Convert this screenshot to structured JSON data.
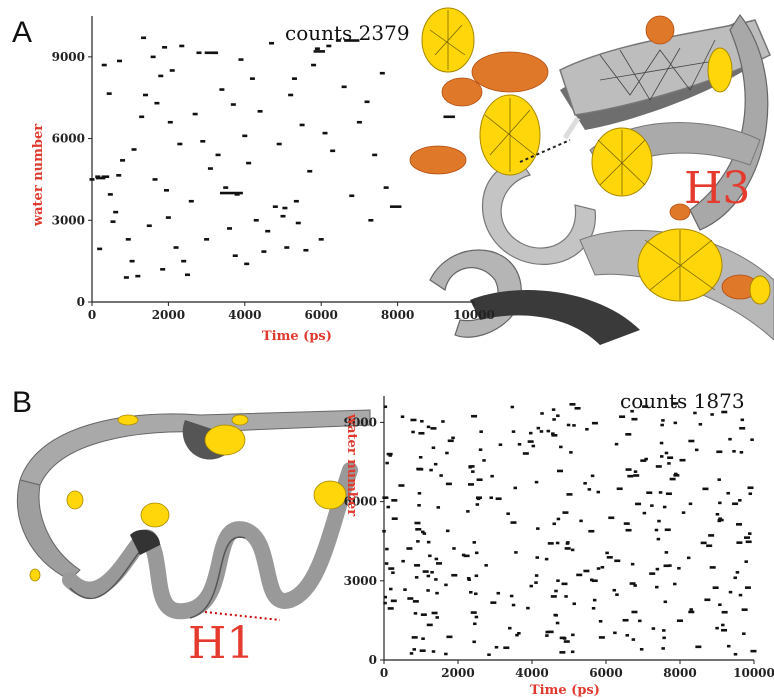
{
  "panels": {
    "a": {
      "letter": "A",
      "helix": "H3"
    },
    "b": {
      "letter": "B",
      "helix": "H1"
    }
  },
  "colors": {
    "axis_label": "#e03a2f",
    "helix_label": "#e53a2e",
    "ribbon": "#9a9a9a",
    "density_yellow": "#ffd200",
    "density_orange": "#e07a20"
  },
  "chart_data": [
    {
      "type": "scatter",
      "panel": "A",
      "annotation": "counts 2379",
      "xlabel": "Time (ps)",
      "ylabel": "water number",
      "xlim": [
        0,
        10000
      ],
      "ylim": [
        0,
        10500
      ],
      "xticks": [
        "0",
        "2000",
        "4000",
        "6000",
        "8000",
        "10000"
      ],
      "yticks": [
        "0",
        "3000",
        "6000",
        "9000"
      ],
      "grid": false,
      "points": [
        [
          0,
          4500
        ],
        [
          150,
          4600
        ],
        [
          200,
          1950
        ],
        [
          320,
          8700
        ],
        [
          450,
          7650
        ],
        [
          480,
          3950
        ],
        [
          550,
          2950
        ],
        [
          620,
          3300
        ],
        [
          700,
          4650
        ],
        [
          720,
          8850
        ],
        [
          800,
          5200
        ],
        [
          900,
          900
        ],
        [
          950,
          2300
        ],
        [
          1050,
          1500
        ],
        [
          1100,
          5600
        ],
        [
          1200,
          950
        ],
        [
          1300,
          6800
        ],
        [
          1350,
          9700
        ],
        [
          1400,
          7600
        ],
        [
          1500,
          2800
        ],
        [
          1600,
          9000
        ],
        [
          1650,
          4500
        ],
        [
          1700,
          7300
        ],
        [
          1800,
          8300
        ],
        [
          1850,
          1200
        ],
        [
          1900,
          9350
        ],
        [
          1950,
          4100
        ],
        [
          2000,
          3100
        ],
        [
          2050,
          6600
        ],
        [
          2100,
          8500
        ],
        [
          2200,
          2000
        ],
        [
          2300,
          5800
        ],
        [
          2350,
          9400
        ],
        [
          2400,
          1500
        ],
        [
          2500,
          1000
        ],
        [
          2600,
          3700
        ],
        [
          2700,
          6900
        ],
        [
          2800,
          9150
        ],
        [
          2900,
          5900
        ],
        [
          3000,
          2300
        ],
        [
          3100,
          4900
        ],
        [
          3200,
          9150
        ],
        [
          3300,
          5400
        ],
        [
          3400,
          7800
        ],
        [
          3500,
          4200
        ],
        [
          3600,
          2700
        ],
        [
          3700,
          7250
        ],
        [
          3750,
          1700
        ],
        [
          3800,
          3950
        ],
        [
          3900,
          8900
        ],
        [
          4000,
          6100
        ],
        [
          4050,
          1400
        ],
        [
          4100,
          5100
        ],
        [
          4200,
          8200
        ],
        [
          4300,
          3000
        ],
        [
          4400,
          7000
        ],
        [
          4500,
          1850
        ],
        [
          4600,
          2600
        ],
        [
          4700,
          9500
        ],
        [
          4800,
          3500
        ],
        [
          4900,
          5800
        ],
        [
          5000,
          3150
        ],
        [
          5050,
          3450
        ],
        [
          5100,
          2000
        ],
        [
          5200,
          7600
        ],
        [
          5300,
          8200
        ],
        [
          5350,
          3700
        ],
        [
          5400,
          2900
        ],
        [
          5500,
          6500
        ],
        [
          5600,
          1900
        ],
        [
          5700,
          4800
        ],
        [
          5800,
          8700
        ],
        [
          5900,
          9300
        ],
        [
          6000,
          2300
        ],
        [
          6100,
          6200
        ],
        [
          6200,
          9400
        ],
        [
          6300,
          5550
        ],
        [
          6450,
          9600
        ],
        [
          6600,
          7900
        ],
        [
          6800,
          3900
        ],
        [
          7000,
          6600
        ],
        [
          7200,
          7350
        ],
        [
          7300,
          3000
        ],
        [
          7400,
          5400
        ],
        [
          7600,
          8400
        ],
        [
          7700,
          4200
        ]
      ],
      "segments": [
        [
          100,
          350,
          4550
        ],
        [
          250,
          450,
          4600
        ],
        [
          2950,
          3300,
          9150
        ],
        [
          3350,
          3950,
          4000
        ],
        [
          6600,
          7000,
          9600
        ],
        [
          7800,
          8100,
          3500
        ],
        [
          9200,
          9500,
          6800
        ],
        [
          5800,
          6100,
          9200
        ]
      ]
    },
    {
      "type": "scatter",
      "panel": "B",
      "annotation": "counts 1873",
      "xlabel": "Time (ps)",
      "ylabel": "water number",
      "xlim": [
        0,
        10000
      ],
      "ylim": [
        0,
        10000
      ],
      "xticks": [
        "0",
        "2000",
        "4000",
        "6000",
        "8000",
        "10000"
      ],
      "yticks": [
        "0",
        "3000",
        "6000",
        "9000"
      ],
      "grid": false,
      "density_note": "approx. 330 scattered points spread uniformly across the plot"
    }
  ]
}
